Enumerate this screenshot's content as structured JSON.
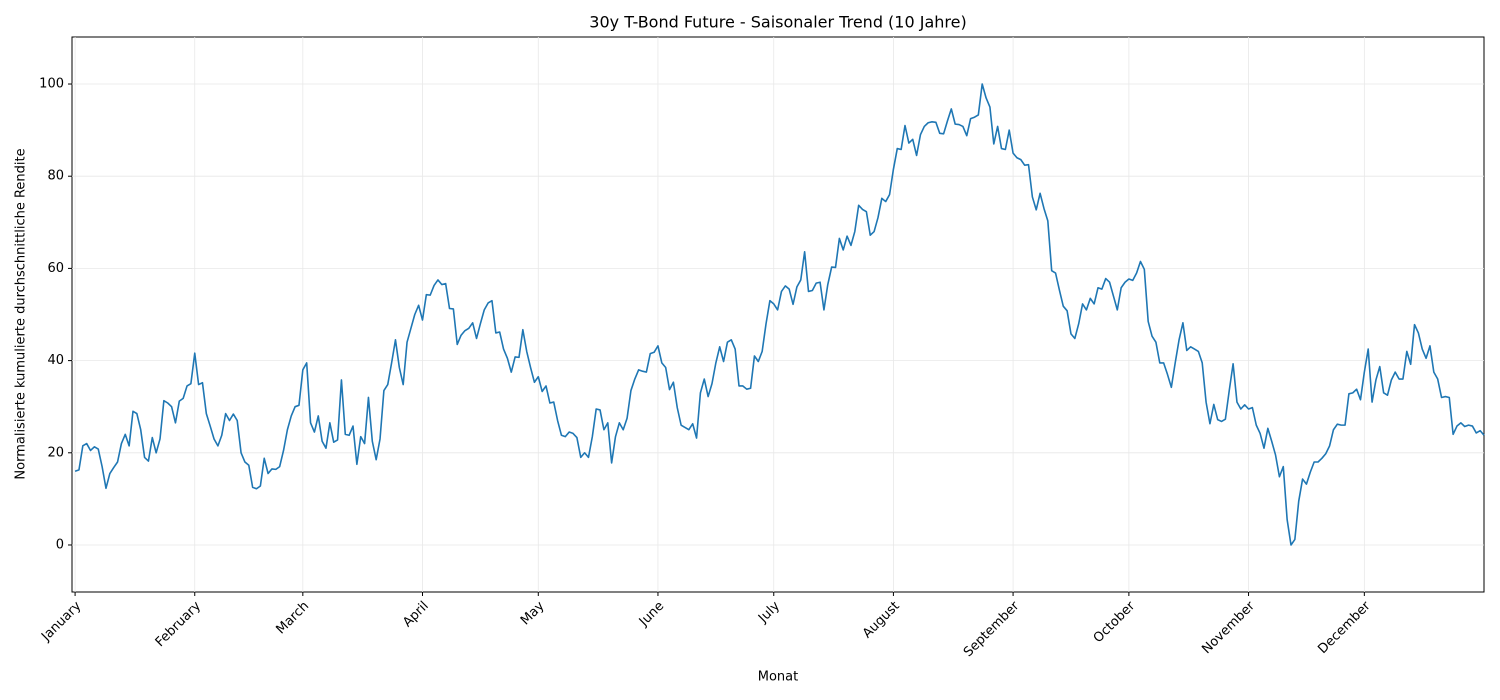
{
  "chart_data": {
    "type": "line",
    "title": "30y T-Bond Future - Saisonaler Trend (10 Jahre)",
    "xlabel": "Monat",
    "ylabel": "Normalisierte kumulierte durchschnittliche Rendite",
    "xlim": [
      0.2,
      366
    ],
    "ylim": [
      -10.2,
      110.2
    ],
    "xticks": [
      {
        "value": 1,
        "label": "January"
      },
      {
        "value": 32,
        "label": "February"
      },
      {
        "value": 60,
        "label": "March"
      },
      {
        "value": 91,
        "label": "April"
      },
      {
        "value": 121,
        "label": "May"
      },
      {
        "value": 152,
        "label": "June"
      },
      {
        "value": 182,
        "label": "July"
      },
      {
        "value": 213,
        "label": "August"
      },
      {
        "value": 244,
        "label": "September"
      },
      {
        "value": 274,
        "label": "October"
      },
      {
        "value": 305,
        "label": "November"
      },
      {
        "value": 335,
        "label": "December"
      }
    ],
    "yticks": [
      0,
      20,
      40,
      60,
      80,
      100
    ],
    "grid": true,
    "x": [
      1,
      2,
      3,
      4,
      5,
      6,
      7,
      8,
      9,
      10,
      11,
      12,
      13,
      14,
      15,
      16,
      17,
      18,
      19,
      20,
      21,
      22,
      23,
      24,
      25,
      26,
      27,
      28,
      29,
      30,
      31,
      32,
      33,
      34,
      35,
      36,
      37,
      38,
      39,
      40,
      41,
      42,
      43,
      44,
      45,
      46,
      47,
      48,
      49,
      50,
      51,
      52,
      53,
      54,
      55,
      56,
      57,
      58,
      59,
      60,
      61,
      62,
      63,
      64,
      65,
      66,
      67,
      68,
      69,
      70,
      71,
      72,
      73,
      74,
      75,
      76,
      77,
      78,
      79,
      80,
      81,
      82,
      83,
      84,
      85,
      86,
      87,
      88,
      89,
      90,
      91,
      92,
      93,
      94,
      95,
      96,
      97,
      98,
      99,
      100,
      101,
      102,
      103,
      104,
      105,
      106,
      107,
      108,
      109,
      110,
      111,
      112,
      113,
      114,
      115,
      116,
      117,
      118,
      119,
      120,
      121,
      122,
      123,
      124,
      125,
      126,
      127,
      128,
      129,
      130,
      131,
      132,
      133,
      134,
      135,
      136,
      137,
      138,
      139,
      140,
      141,
      142,
      143,
      144,
      145,
      146,
      147,
      148,
      149,
      150,
      151,
      152,
      153,
      154,
      155,
      156,
      157,
      158,
      159,
      160,
      161,
      162,
      163,
      164,
      165,
      166,
      167,
      168,
      169,
      170,
      171,
      172,
      173,
      174,
      175,
      176,
      177,
      178,
      179,
      180,
      181,
      182,
      183,
      184,
      185,
      186,
      187,
      188,
      189,
      190,
      191,
      192,
      193,
      194,
      195,
      196,
      197,
      198,
      199,
      200,
      201,
      202,
      203,
      204,
      205,
      206,
      207,
      208,
      209,
      210,
      211,
      212,
      213,
      214,
      215,
      216,
      217,
      218,
      219,
      220,
      221,
      222,
      223,
      224,
      225,
      226,
      227,
      228,
      229,
      230,
      231,
      232,
      233,
      234,
      235,
      236,
      237,
      238,
      239,
      240,
      241,
      242,
      243,
      244,
      245,
      246,
      247,
      248,
      249,
      250,
      251,
      252,
      253,
      254,
      255,
      256,
      257,
      258,
      259,
      260,
      261,
      262,
      263,
      264,
      265,
      266,
      267,
      268,
      269,
      270,
      271,
      272,
      273,
      274,
      275,
      276,
      277,
      278,
      279,
      280,
      281,
      282,
      283,
      284,
      285,
      286,
      287,
      288,
      289,
      290,
      291,
      292,
      293,
      294,
      295,
      296,
      297,
      298,
      299,
      300,
      301,
      302,
      303,
      304,
      305,
      306,
      307,
      308,
      309,
      310,
      311,
      312,
      313,
      314,
      315,
      316,
      317,
      318,
      319,
      320,
      321,
      322,
      323,
      324,
      325,
      326,
      327,
      328,
      329,
      330,
      331,
      332,
      333,
      334,
      335,
      336,
      337,
      338,
      339,
      340,
      341,
      342,
      343,
      344,
      345,
      346,
      347,
      348,
      349,
      350,
      351,
      352,
      353,
      354,
      355,
      356,
      357,
      358,
      359,
      360,
      361,
      362,
      363,
      364,
      365,
      366
    ],
    "series": [
      {
        "color": "#1f77b4",
        "values": [
          16,
          16.3,
          21.5,
          22,
          20.5,
          21.3,
          20.8,
          17,
          12.3,
          15.5,
          16.8,
          18,
          22,
          24,
          21.5,
          29,
          28.5,
          25,
          19,
          18.2,
          23.3,
          20,
          23,
          31.3,
          30.8,
          30,
          26.5,
          31.2,
          31.8,
          34.5,
          35,
          41.6,
          34.8,
          35.2,
          28.5,
          25.8,
          23,
          21.5,
          23.8,
          28.5,
          27,
          28.4,
          27,
          20,
          18,
          17.3,
          12.5,
          12.2,
          12.8,
          18.8,
          15.5,
          16.5,
          16.4,
          17,
          20.5,
          25,
          28,
          30,
          30.3,
          38,
          39.5,
          26.5,
          24.5,
          28,
          22.5,
          21,
          26.5,
          22.3,
          22.8,
          35.8,
          24,
          23.8,
          25.8,
          17.5,
          23.5,
          22,
          32,
          22.5,
          18.5,
          23,
          33.5,
          34.8,
          39.5,
          44.5,
          38.5,
          34.8,
          44,
          47,
          50,
          52,
          48.8,
          54.3,
          54.2,
          56.3,
          57.5,
          56.5,
          56.7,
          51.3,
          51.2,
          43.5,
          45.5,
          46.5,
          47,
          48.2,
          44.8,
          48,
          51,
          52.5,
          53,
          46,
          46.2,
          42.5,
          40.5,
          37.5,
          40.8,
          40.7,
          46.7,
          42,
          38.5,
          35.3,
          36.5,
          33.3,
          34.5,
          30.8,
          31,
          27,
          23.8,
          23.5,
          24.5,
          24.2,
          23.3,
          19,
          20,
          19,
          23.5,
          29.5,
          29.3,
          25,
          26.5,
          17.8,
          23.5,
          26.5,
          25,
          27.5,
          33.5,
          36,
          38,
          37.7,
          37.5,
          41.5,
          41.8,
          43.2,
          39.5,
          38.5,
          33.7,
          35.3,
          29.8,
          26,
          25.5,
          25,
          26.3,
          23.2,
          33,
          36,
          32.2,
          35,
          39.5,
          43,
          39.8,
          44,
          44.5,
          42.5,
          34.5,
          34.5,
          33.8,
          34,
          41,
          39.8,
          42,
          48,
          53,
          52.3,
          51,
          55,
          56.2,
          55.5,
          52.2,
          56,
          57.5,
          63.6,
          55,
          55.2,
          56.8,
          57,
          51,
          56.5,
          60.3,
          60.2,
          66.5,
          64,
          67,
          65,
          68,
          73.7,
          72.8,
          72.3,
          67.2,
          68,
          71,
          75.2,
          74.5,
          76,
          81.5,
          86,
          85.8,
          91,
          87.2,
          88,
          84.5,
          89,
          90.8,
          91.6,
          91.8,
          91.7,
          89.3,
          89.2,
          92,
          94.6,
          91.3,
          91.2,
          90.8,
          88.8,
          92.5,
          92.8,
          93.3,
          100,
          97,
          95,
          87,
          90.8,
          86,
          85.8,
          90,
          85,
          84,
          83.6,
          82.4,
          82.5,
          75.5,
          72.7,
          76.3,
          73,
          70.3,
          59.5,
          59,
          55.3,
          51.8,
          50.8,
          45.8,
          44.8,
          48,
          52.3,
          51,
          53.5,
          52.3,
          55.8,
          55.5,
          57.8,
          57,
          54,
          51,
          55.8,
          57,
          57.7,
          57.4,
          59,
          61.5,
          59.8,
          48.5,
          45.3,
          44,
          39.5,
          39.5,
          37,
          34.2,
          39.5,
          44.5,
          48.2,
          42.2,
          43,
          42.5,
          42,
          39.5,
          31,
          26.3,
          30.5,
          27.2,
          26.8,
          27.3,
          33.5,
          39.3,
          31,
          29.5,
          30.4,
          29.5,
          29.8,
          26,
          24.2,
          21,
          25.3,
          22.5,
          19.5,
          14.8,
          17,
          5.5,
          0,
          1.2,
          9.5,
          14.3,
          13.2,
          15.8,
          18,
          18,
          18.8,
          19.8,
          21.5,
          25,
          26.2,
          26,
          26,
          32.8,
          33,
          33.8,
          31.5,
          37.5,
          42.5,
          31,
          35.8,
          38.7,
          33,
          32.5,
          35.8,
          37.5,
          36,
          36,
          42,
          39.2,
          47.8,
          46,
          42.5,
          40.5,
          43.2,
          37.5,
          36,
          32,
          32.2,
          32,
          24,
          25.8,
          26.5,
          25.7,
          26,
          25.8,
          24.3,
          24.8,
          23.8
        ]
      }
    ]
  }
}
